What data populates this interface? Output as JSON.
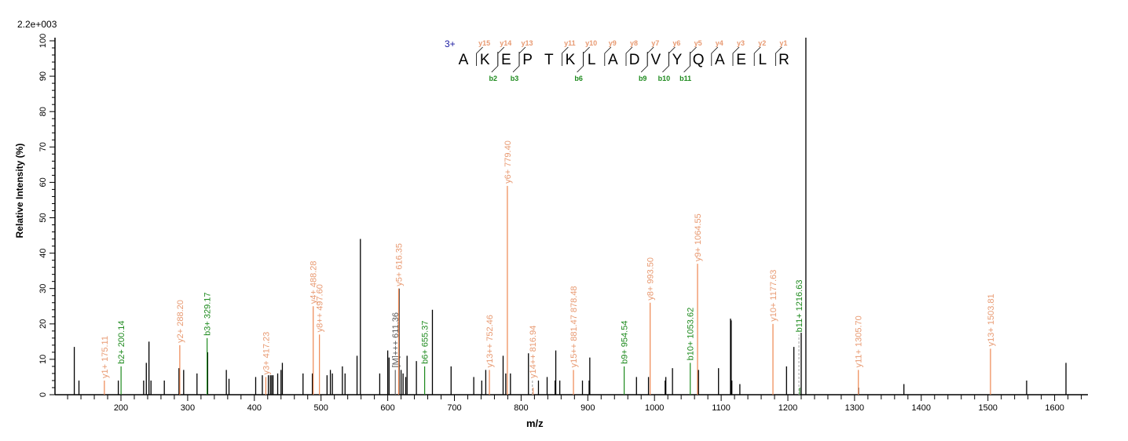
{
  "chart_data": {
    "type": "bar",
    "subtype": "mass-spectrum-stick",
    "scale_label": "2.2e+003",
    "xlabel": "m/z",
    "ylabel": "Relative  Intensity (%)",
    "xlim": [
      100,
      1655
    ],
    "ylim": [
      0,
      100
    ],
    "x_ticks": [
      200,
      300,
      400,
      500,
      600,
      700,
      800,
      900,
      1000,
      1100,
      1200,
      1300,
      1400,
      1500,
      1600
    ],
    "y_ticks": [
      0,
      10,
      20,
      30,
      40,
      50,
      60,
      70,
      80,
      90,
      100
    ],
    "grid": false,
    "colors": {
      "y": "#ee8650",
      "b": "#1d8a1d",
      "other": "#000000",
      "M": "#666666",
      "y_label": "#e89a72",
      "b_label": "#1d8a1d",
      "M_label": "#555555"
    },
    "precursor_mz": 1227,
    "peptide": {
      "charge": "3+",
      "sequence": [
        "A",
        "K",
        "E",
        "P",
        "T",
        "K",
        "L",
        "A",
        "D",
        "V",
        "Y",
        "Q",
        "A",
        "E",
        "L",
        "R"
      ],
      "y_ions": [
        15,
        14,
        13,
        11,
        10,
        9,
        8,
        7,
        6,
        5,
        4,
        3,
        2,
        1
      ],
      "b_ions": [
        2,
        3,
        6,
        9,
        10,
        11
      ]
    },
    "peaks": [
      {
        "mz": 175.11,
        "i": 4,
        "type": "y",
        "label": "y1+ 175.11"
      },
      {
        "mz": 200.14,
        "i": 8,
        "type": "b",
        "label": "b2+ 200.14"
      },
      {
        "mz": 288.2,
        "i": 14,
        "type": "y",
        "label": "y2+ 288.20"
      },
      {
        "mz": 329.17,
        "i": 16,
        "type": "b",
        "label": "b3+ 329.17"
      },
      {
        "mz": 417.23,
        "i": 5,
        "type": "y",
        "label": "y3+ 417.23"
      },
      {
        "mz": 488.28,
        "i": 25,
        "type": "y",
        "label": "y4+ 488.28"
      },
      {
        "mz": 497.6,
        "i": 17,
        "type": "y",
        "label": "y8++ 497.60"
      },
      {
        "mz": 611.36,
        "i": 7,
        "type": "M",
        "label": "[M]+++ 611.36"
      },
      {
        "mz": 616.35,
        "i": 30,
        "type": "y",
        "label": "y5+ 616.35"
      },
      {
        "mz": 655.37,
        "i": 8,
        "type": "b",
        "label": "b6+ 655.37"
      },
      {
        "mz": 752.46,
        "i": 7,
        "type": "y",
        "label": "y13++ 752.46"
      },
      {
        "mz": 779.4,
        "i": 59,
        "type": "y",
        "label": "y6+ 779.40"
      },
      {
        "mz": 816.94,
        "i": 4,
        "type": "y",
        "label": "y14++ 816.94",
        "dashed": true
      },
      {
        "mz": 878.48,
        "i": 7,
        "type": "y",
        "label": "y15++ 881.47 878.48"
      },
      {
        "mz": 954.54,
        "i": 8,
        "type": "b",
        "label": "b9+ 954.54"
      },
      {
        "mz": 993.5,
        "i": 26,
        "type": "y",
        "label": "y8+ 993.50"
      },
      {
        "mz": 1053.62,
        "i": 9,
        "type": "b",
        "label": "b10+ 1053.62"
      },
      {
        "mz": 1064.55,
        "i": 37,
        "type": "y",
        "label": "y9+ 1064.55"
      },
      {
        "mz": 1177.63,
        "i": 20,
        "type": "y",
        "label": "y10+ 1177.63"
      },
      {
        "mz": 1216.63,
        "i": 17,
        "type": "b",
        "label": "b11+ 1216.63",
        "dashed": true
      },
      {
        "mz": 1305.7,
        "i": 7,
        "type": "y",
        "label": "y11+ 1305.70"
      },
      {
        "mz": 1503.81,
        "i": 13,
        "type": "y",
        "label": "y13+ 1503.81"
      },
      {
        "mz": 130,
        "i": 13.5,
        "type": "other"
      },
      {
        "mz": 137,
        "i": 4,
        "type": "other"
      },
      {
        "mz": 196,
        "i": 4,
        "type": "other"
      },
      {
        "mz": 234,
        "i": 4,
        "type": "other"
      },
      {
        "mz": 238,
        "i": 9,
        "type": "other"
      },
      {
        "mz": 242,
        "i": 15,
        "type": "other"
      },
      {
        "mz": 245,
        "i": 4,
        "type": "other"
      },
      {
        "mz": 265,
        "i": 4,
        "type": "other"
      },
      {
        "mz": 287,
        "i": 7.5,
        "type": "other"
      },
      {
        "mz": 294,
        "i": 7,
        "type": "other"
      },
      {
        "mz": 314,
        "i": 6,
        "type": "other"
      },
      {
        "mz": 330,
        "i": 12,
        "type": "other"
      },
      {
        "mz": 358,
        "i": 7,
        "type": "other"
      },
      {
        "mz": 362,
        "i": 4.5,
        "type": "other"
      },
      {
        "mz": 402,
        "i": 5,
        "type": "other"
      },
      {
        "mz": 412,
        "i": 5.5,
        "type": "other"
      },
      {
        "mz": 421,
        "i": 5.5,
        "type": "other"
      },
      {
        "mz": 424,
        "i": 5.5,
        "type": "other"
      },
      {
        "mz": 426,
        "i": 5.5,
        "type": "other"
      },
      {
        "mz": 428,
        "i": 5.5,
        "type": "other"
      },
      {
        "mz": 435,
        "i": 6,
        "type": "other"
      },
      {
        "mz": 440,
        "i": 7,
        "type": "other"
      },
      {
        "mz": 442,
        "i": 9,
        "type": "other"
      },
      {
        "mz": 473,
        "i": 6,
        "type": "other"
      },
      {
        "mz": 487,
        "i": 6,
        "type": "other"
      },
      {
        "mz": 509,
        "i": 5.5,
        "type": "other"
      },
      {
        "mz": 514,
        "i": 7,
        "type": "other"
      },
      {
        "mz": 517,
        "i": 6,
        "type": "other"
      },
      {
        "mz": 532,
        "i": 8,
        "type": "other"
      },
      {
        "mz": 536,
        "i": 6,
        "type": "other"
      },
      {
        "mz": 554,
        "i": 11,
        "type": "other"
      },
      {
        "mz": 559,
        "i": 44,
        "type": "other"
      },
      {
        "mz": 588,
        "i": 6,
        "type": "other"
      },
      {
        "mz": 600,
        "i": 12.5,
        "type": "other"
      },
      {
        "mz": 602,
        "i": 10.5,
        "type": "other"
      },
      {
        "mz": 617,
        "i": 30,
        "type": "other"
      },
      {
        "mz": 620,
        "i": 7,
        "type": "other"
      },
      {
        "mz": 623,
        "i": 6,
        "type": "other"
      },
      {
        "mz": 627,
        "i": 5,
        "type": "other"
      },
      {
        "mz": 629,
        "i": 11,
        "type": "other"
      },
      {
        "mz": 643,
        "i": 9.5,
        "type": "other"
      },
      {
        "mz": 667,
        "i": 24,
        "type": "other"
      },
      {
        "mz": 695,
        "i": 8,
        "type": "other"
      },
      {
        "mz": 729,
        "i": 5,
        "type": "other"
      },
      {
        "mz": 741,
        "i": 4,
        "type": "other"
      },
      {
        "mz": 747,
        "i": 7,
        "type": "other"
      },
      {
        "mz": 773,
        "i": 11,
        "type": "other"
      },
      {
        "mz": 777,
        "i": 6,
        "type": "other"
      },
      {
        "mz": 784,
        "i": 6,
        "type": "other"
      },
      {
        "mz": 811,
        "i": 11.7,
        "type": "other"
      },
      {
        "mz": 826,
        "i": 4,
        "type": "other"
      },
      {
        "mz": 839,
        "i": 5,
        "type": "other"
      },
      {
        "mz": 851,
        "i": 4,
        "type": "other"
      },
      {
        "mz": 852,
        "i": 12.5,
        "type": "other"
      },
      {
        "mz": 858,
        "i": 4,
        "type": "other"
      },
      {
        "mz": 892,
        "i": 4,
        "type": "other"
      },
      {
        "mz": 902,
        "i": 4,
        "type": "other"
      },
      {
        "mz": 903,
        "i": 10.5,
        "type": "other"
      },
      {
        "mz": 973,
        "i": 5,
        "type": "other"
      },
      {
        "mz": 991,
        "i": 5,
        "type": "other"
      },
      {
        "mz": 1016,
        "i": 4,
        "type": "other"
      },
      {
        "mz": 1017,
        "i": 5,
        "type": "other"
      },
      {
        "mz": 1027,
        "i": 7.5,
        "type": "other"
      },
      {
        "mz": 1066,
        "i": 7,
        "type": "other"
      },
      {
        "mz": 1096,
        "i": 7.5,
        "type": "other"
      },
      {
        "mz": 1114,
        "i": 21.5,
        "type": "other"
      },
      {
        "mz": 1115,
        "i": 21,
        "type": "other"
      },
      {
        "mz": 1116,
        "i": 4,
        "type": "other"
      },
      {
        "mz": 1128,
        "i": 3,
        "type": "other"
      },
      {
        "mz": 1198,
        "i": 8,
        "type": "other"
      },
      {
        "mz": 1209,
        "i": 13.5,
        "type": "other"
      },
      {
        "mz": 1220,
        "i": 17.5,
        "type": "other"
      },
      {
        "mz": 1306,
        "i": 2,
        "type": "other"
      },
      {
        "mz": 1374,
        "i": 3,
        "type": "other"
      },
      {
        "mz": 1558,
        "i": 4,
        "type": "other"
      },
      {
        "mz": 1617,
        "i": 9,
        "type": "other"
      }
    ]
  }
}
